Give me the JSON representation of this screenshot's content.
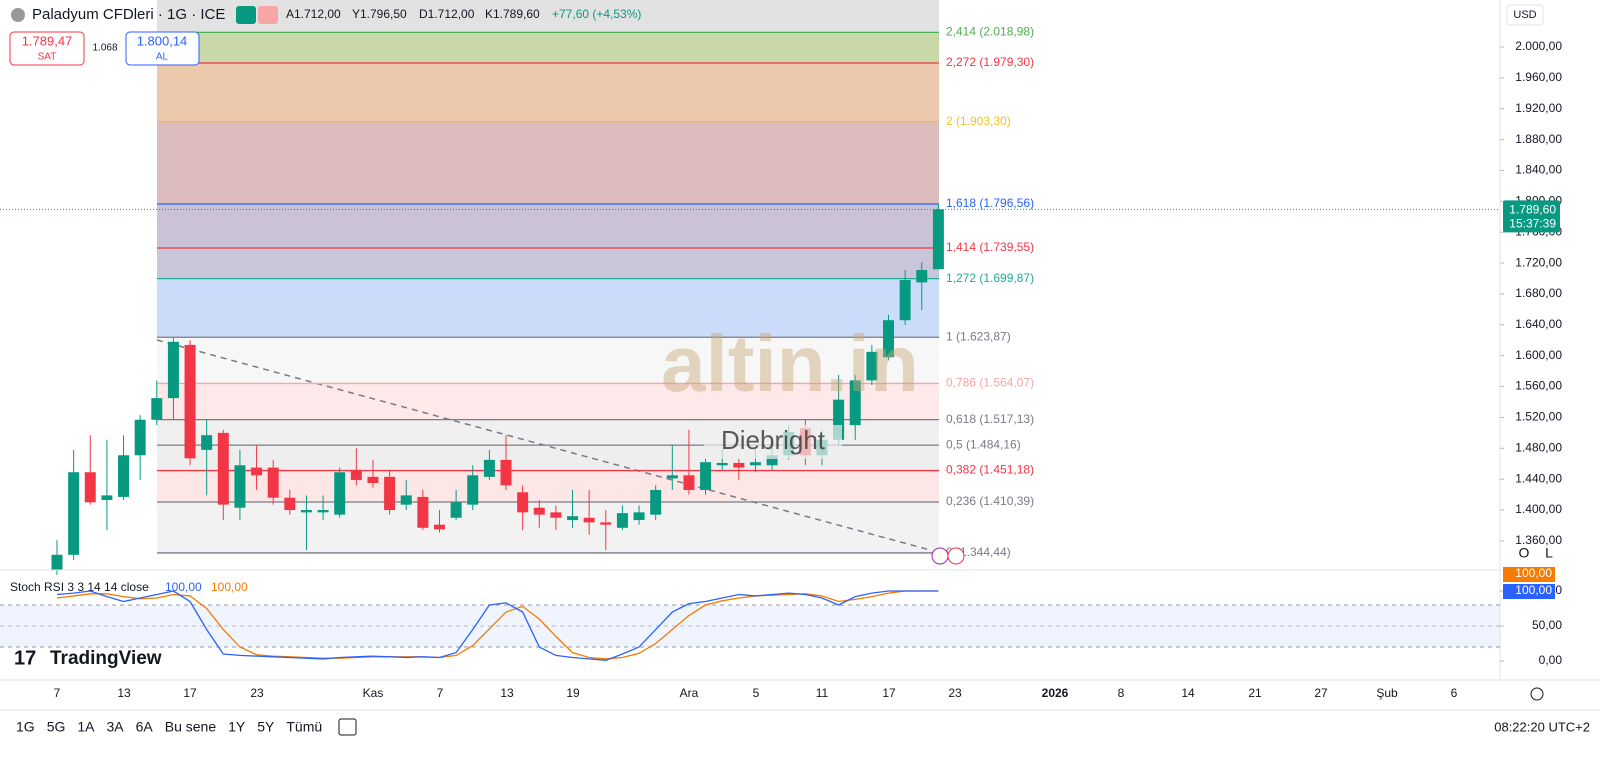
{
  "chart": {
    "type": "candlestick",
    "header": {
      "symbol": "Paladyum CFDleri · 1G · ICE",
      "open": "A1.712,00",
      "high": "Y1.796,50",
      "low": "D1.712,00",
      "close": "K1.789,60",
      "change": "+77,60 (+4,53%)"
    },
    "trade": {
      "sell_price": "1.789,47",
      "sell": "SAT",
      "spread": "1.068",
      "buy_price": "1.800,14",
      "buy": "AL"
    },
    "currency": "USD",
    "last_price": {
      "value": 1789.6,
      "label": "1.789,60"
    },
    "countdown": "15:37:39",
    "ylim": [
      1322.3,
      2060.9
    ],
    "yticks": [
      {
        "value": 2000,
        "label": "2.000,00"
      },
      {
        "value": 1960,
        "label": "1.960,00"
      },
      {
        "value": 1920,
        "label": "1.920,00"
      },
      {
        "value": 1880,
        "label": "1.880,00"
      },
      {
        "value": 1840,
        "label": "1.840,00"
      },
      {
        "value": 1800,
        "label": "1.800,00"
      },
      {
        "value": 1760,
        "label": "1.760,00"
      },
      {
        "value": 1720,
        "label": "1.720,00"
      },
      {
        "value": 1680,
        "label": "1.680,00"
      },
      {
        "value": 1640,
        "label": "1.640,00"
      },
      {
        "value": 1600,
        "label": "1.600,00"
      },
      {
        "value": 1560,
        "label": "1.560,00"
      },
      {
        "value": 1520,
        "label": "1.520,00"
      },
      {
        "value": 1480,
        "label": "1.480,00"
      },
      {
        "value": 1440,
        "label": "1.440,00"
      },
      {
        "value": 1400,
        "label": "1.400,00"
      },
      {
        "value": 1360,
        "label": "1.360,00"
      }
    ],
    "fib_levels": [
      {
        "value": 2018.98,
        "label": "2,414 (2.018,98)",
        "color": "#4caf50"
      },
      {
        "value": 1979.3,
        "label": "2,272 (1.979,30)",
        "color": "#f23645"
      },
      {
        "value": 1903.3,
        "label": "2 (1.903,30)",
        "color": "#f5c518"
      },
      {
        "value": 1796.56,
        "label": "1,618 (1.796,56)",
        "color": "#2962ff"
      },
      {
        "value": 1739.55,
        "label": "1,414 (1.739,55)",
        "color": "#f23645"
      },
      {
        "value": 1699.87,
        "label": "1,272 (1.699,87)",
        "color": "#22ab94"
      },
      {
        "value": 1623.87,
        "label": "1 (1.623,87)",
        "color": "#787b86"
      },
      {
        "value": 1564.07,
        "label": "0,786 (1.564,07)",
        "color": "#f7a5a5"
      },
      {
        "value": 1517.13,
        "label": "0,618 (1.517,13)",
        "color": "#787b86"
      },
      {
        "value": 1484.16,
        "label": "0,5 (1.484,16)",
        "color": "#787b86"
      },
      {
        "value": 1451.18,
        "label": "0,382 (1.451,18)",
        "color": "#f23645"
      },
      {
        "value": 1410.39,
        "label": "0,236 (1.410,39)",
        "color": "#787b86"
      },
      {
        "value": 1344.44,
        "label": "0 (1.344,44)",
        "color": "#787b86"
      }
    ],
    "up_color": "#089981",
    "down_color": "#f23645",
    "candles": [
      [
        1322,
        1361,
        1316,
        1342
      ],
      [
        1342,
        1478,
        1335,
        1449
      ],
      [
        1449,
        1497,
        1407,
        1410
      ],
      [
        1413,
        1491,
        1374,
        1419
      ],
      [
        1417,
        1497,
        1413,
        1471
      ],
      [
        1471,
        1523,
        1439,
        1517
      ],
      [
        1517,
        1568,
        1510,
        1545
      ],
      [
        1545,
        1623,
        1517,
        1618
      ],
      [
        1614,
        1620,
        1458,
        1467
      ],
      [
        1478,
        1517,
        1419,
        1497
      ],
      [
        1500,
        1504,
        1387,
        1407
      ],
      [
        1403,
        1478,
        1387,
        1458
      ],
      [
        1455,
        1484,
        1426,
        1445
      ],
      [
        1455,
        1465,
        1407,
        1416
      ],
      [
        1416,
        1426,
        1394,
        1400
      ],
      [
        1397,
        1419,
        1348,
        1400
      ],
      [
        1397,
        1419,
        1387,
        1400
      ],
      [
        1394,
        1455,
        1390,
        1449
      ],
      [
        1452,
        1480,
        1432,
        1439
      ],
      [
        1443,
        1465,
        1429,
        1435
      ],
      [
        1443,
        1452,
        1394,
        1400
      ],
      [
        1407,
        1439,
        1400,
        1419
      ],
      [
        1417,
        1426,
        1374,
        1377
      ],
      [
        1381,
        1400,
        1371,
        1375
      ],
      [
        1390,
        1426,
        1387,
        1410
      ],
      [
        1407,
        1458,
        1400,
        1445
      ],
      [
        1443,
        1478,
        1439,
        1465
      ],
      [
        1465,
        1497,
        1426,
        1432
      ],
      [
        1423,
        1432,
        1374,
        1397
      ],
      [
        1403,
        1413,
        1377,
        1394
      ],
      [
        1397,
        1406,
        1374,
        1390
      ],
      [
        1387,
        1426,
        1377,
        1392
      ],
      [
        1390,
        1426,
        1368,
        1384
      ],
      [
        1384,
        1400,
        1348,
        1381
      ],
      [
        1377,
        1406,
        1374,
        1396
      ],
      [
        1387,
        1406,
        1381,
        1397
      ],
      [
        1394,
        1432,
        1387,
        1426
      ],
      [
        1441,
        1484,
        1426,
        1445
      ],
      [
        1445,
        1504,
        1420,
        1426
      ],
      [
        1426,
        1467,
        1420,
        1462
      ],
      [
        1458,
        1478,
        1452,
        1461
      ],
      [
        1461,
        1467,
        1439,
        1455
      ],
      [
        1458,
        1478,
        1449,
        1462
      ],
      [
        1458,
        1491,
        1452,
        1471
      ],
      [
        1471,
        1510,
        1465,
        1501
      ],
      [
        1506,
        1517,
        1458,
        1471
      ],
      [
        1471,
        1504,
        1458,
        1491
      ],
      [
        1491,
        1575,
        1484,
        1543
      ],
      [
        1510,
        1575,
        1491,
        1568
      ],
      [
        1568,
        1614,
        1562,
        1605
      ],
      [
        1598,
        1653,
        1594,
        1646
      ],
      [
        1646,
        1711,
        1640,
        1698
      ],
      [
        1695,
        1721,
        1659,
        1711
      ],
      [
        1712,
        1796.5,
        1712,
        1789.6
      ]
    ],
    "time_labels": [
      "7",
      "13",
      "17",
      "23",
      "Kas",
      "7",
      "13",
      "19",
      "Ara",
      "5",
      "11",
      "17",
      "23",
      "2026",
      "8",
      "14",
      "21",
      "27",
      "Şub",
      "6"
    ],
    "watermark": "altin.in",
    "watermark2": "Diebright",
    "logo": "TradingView",
    "stoch": {
      "title": "Stoch RSI 3 3 14 14 close",
      "ylim": [
        -15.7,
        118.6
      ],
      "yticks": [
        {
          "value": 100,
          "label": "100,00"
        },
        {
          "value": 50,
          "label": "50,00"
        },
        {
          "value": 0,
          "label": "0,00"
        }
      ],
      "bands": [
        80,
        20
      ],
      "series": [
        {
          "name": "K",
          "color": "#2962ff",
          "last": {
            "value": 100,
            "label": "100,00"
          },
          "values": [
            95,
            97,
            100,
            92,
            85,
            90,
            95,
            100,
            85,
            45,
            10,
            8,
            7,
            6,
            5,
            4,
            3,
            5,
            6,
            7,
            6,
            5,
            6,
            5,
            12,
            45,
            80,
            83,
            70,
            20,
            8,
            5,
            3,
            1,
            10,
            20,
            45,
            70,
            82,
            85,
            90,
            95,
            93,
            95,
            97,
            95,
            90,
            80,
            92,
            97,
            100,
            100,
            100,
            100
          ]
        },
        {
          "name": "D",
          "color": "#f57c00",
          "last": {
            "value": 100,
            "label": "100,00"
          },
          "values": [
            90,
            93,
            96,
            96,
            92,
            89,
            90,
            95,
            93,
            75,
            45,
            20,
            9,
            7,
            6,
            5,
            4,
            4,
            5,
            6,
            6,
            6,
            6,
            5,
            8,
            22,
            46,
            70,
            78,
            60,
            35,
            12,
            5,
            3,
            5,
            11,
            25,
            45,
            65,
            80,
            86,
            90,
            93,
            94,
            95,
            96,
            93,
            85,
            88,
            92,
            97,
            100,
            100,
            100
          ]
        }
      ]
    },
    "ranges": [
      "1G",
      "5G",
      "1A",
      "3A",
      "6A",
      "Bu sene",
      "1Y",
      "5Y",
      "Tümü"
    ],
    "clock": "08:22:20 UTC+2",
    "scale_buttons": [
      "O",
      "L"
    ]
  }
}
